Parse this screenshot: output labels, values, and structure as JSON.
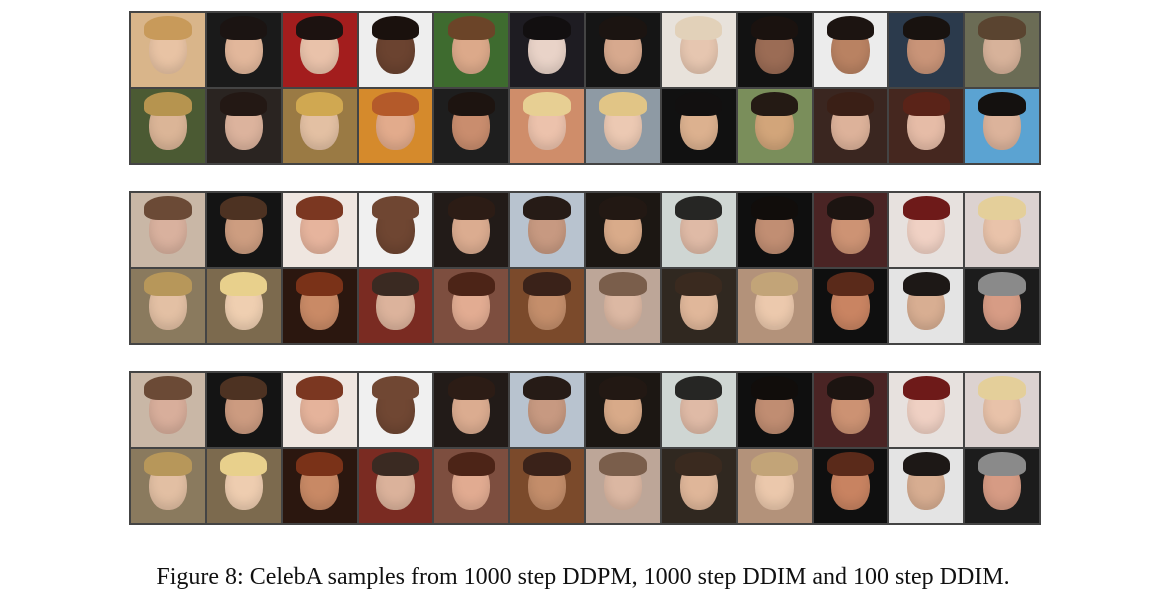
{
  "caption": "Figure 8: CelebA samples from 1000 step DDPM, 1000 step DDIM and 100 step DDIM.",
  "grids": [
    {
      "tiles": [
        {
          "bg": "#d9b58a",
          "skin": "#e8c3a4",
          "hair": "#c89a5a"
        },
        {
          "bg": "#1a1a1a",
          "skin": "#e2b79b",
          "hair": "#1b1412"
        },
        {
          "bg": "#a31d1d",
          "skin": "#e9c2aa",
          "hair": "#1c1210"
        },
        {
          "bg": "#eeeeee",
          "skin": "#6b4330",
          "hair": "#1a110d"
        },
        {
          "bg": "#3e6b2f",
          "skin": "#dca98a",
          "hair": "#6b4428"
        },
        {
          "bg": "#1e1c22",
          "skin": "#e9d3c8",
          "hair": "#120f10"
        },
        {
          "bg": "#151515",
          "skin": "#d7a98e",
          "hair": "#1b1411"
        },
        {
          "bg": "#e8e2db",
          "skin": "#e6c6b0",
          "hair": "#e2d1b9"
        },
        {
          "bg": "#121212",
          "skin": "#9b6c55",
          "hair": "#1a120f"
        },
        {
          "bg": "#ececec",
          "skin": "#b98262",
          "hair": "#1c1411"
        },
        {
          "bg": "#2b3a4c",
          "skin": "#c99478",
          "hair": "#18120f"
        },
        {
          "bg": "#6b6c55",
          "skin": "#d7b29a",
          "hair": "#5a4430"
        },
        {
          "bg": "#4b5a33",
          "skin": "#dbb597",
          "hair": "#b6944f"
        },
        {
          "bg": "#2a2421",
          "skin": "#dcb39d",
          "hair": "#231814"
        },
        {
          "bg": "#9a7a44",
          "skin": "#e3c0a3",
          "hair": "#d0a851"
        },
        {
          "bg": "#d58a2c",
          "skin": "#e2ab8c",
          "hair": "#b45a2a"
        },
        {
          "bg": "#1e1e1e",
          "skin": "#c98d6e",
          "hair": "#1d1410"
        },
        {
          "bg": "#cf8d6a",
          "skin": "#ecc2ac",
          "hair": "#e7cf93"
        },
        {
          "bg": "#8e9aa4",
          "skin": "#ecc9b3",
          "hair": "#e1c586"
        },
        {
          "bg": "#111111",
          "skin": "#dcb18f",
          "hair": "#121010"
        },
        {
          "bg": "#7a8e5b",
          "skin": "#d2a57a",
          "hair": "#241a14"
        },
        {
          "bg": "#3a2620",
          "skin": "#ddb29a",
          "hair": "#3a1f16"
        },
        {
          "bg": "#45271f",
          "skin": "#e6bca7",
          "hair": "#5a2318"
        },
        {
          "bg": "#5ba3d2",
          "skin": "#dcb39b",
          "hair": "#14110f"
        }
      ]
    },
    {
      "tiles": [
        {
          "bg": "#c9b7a6",
          "skin": "#d9b19e",
          "hair": "#6b4a36"
        },
        {
          "bg": "#141414",
          "skin": "#cd9d80",
          "hair": "#4d3222"
        },
        {
          "bg": "#efe6e0",
          "skin": "#e6b49d",
          "hair": "#7b3721"
        },
        {
          "bg": "#f0f0f0",
          "skin": "#6f4632",
          "hair": "#6f4632"
        },
        {
          "bg": "#221b18",
          "skin": "#dbac90",
          "hair": "#2c1c15"
        },
        {
          "bg": "#b8c3cf",
          "skin": "#c79981",
          "hair": "#261b16"
        },
        {
          "bg": "#1c1713",
          "skin": "#d9ab8a",
          "hair": "#221813"
        },
        {
          "bg": "#cfd6d3",
          "skin": "#dfbaa6",
          "hair": "#262624"
        },
        {
          "bg": "#0f0f0f",
          "skin": "#c18e73",
          "hair": "#110d0b"
        },
        {
          "bg": "#4a2424",
          "skin": "#cd9374",
          "hair": "#1c1411"
        },
        {
          "bg": "#e7e1de",
          "skin": "#f0d1c4",
          "hair": "#6e1a19"
        },
        {
          "bg": "#dcd2d0",
          "skin": "#e9c3aa",
          "hair": "#e4cf9a"
        },
        {
          "bg": "#8a7a5e",
          "skin": "#e3c0a4",
          "hair": "#b7975a"
        },
        {
          "bg": "#7c6a4e",
          "skin": "#efcfb1",
          "hair": "#e8d08c"
        },
        {
          "bg": "#2b170f",
          "skin": "#c98a66",
          "hair": "#7a3218"
        },
        {
          "bg": "#7a2b22",
          "skin": "#dcb39c",
          "hair": "#3a2a22"
        },
        {
          "bg": "#7d4e3f",
          "skin": "#e2ac92",
          "hair": "#4c2417"
        },
        {
          "bg": "#7b4a2b",
          "skin": "#c48e6b",
          "hair": "#3a2219"
        },
        {
          "bg": "#bda698",
          "skin": "#dcb8a3",
          "hair": "#7a5e4b"
        },
        {
          "bg": "#302820",
          "skin": "#e0b79a",
          "hair": "#3a2a1f"
        },
        {
          "bg": "#b3927a",
          "skin": "#ecc9ad",
          "hair": "#c2a478"
        },
        {
          "bg": "#0f0f0f",
          "skin": "#c98462",
          "hair": "#5a2a1a"
        },
        {
          "bg": "#e4e4e4",
          "skin": "#d8ae92",
          "hair": "#1d1816"
        },
        {
          "bg": "#1c1c1c",
          "skin": "#d79c85",
          "hair": "#8a8a8a"
        }
      ]
    },
    {
      "tiles": [
        {
          "bg": "#c9b7a6",
          "skin": "#d8ae9b",
          "hair": "#6b4a36"
        },
        {
          "bg": "#141414",
          "skin": "#cc9b80",
          "hair": "#4d3222"
        },
        {
          "bg": "#efe6e0",
          "skin": "#e5b39b",
          "hair": "#7b3721"
        },
        {
          "bg": "#f0f0f0",
          "skin": "#704733",
          "hair": "#704733"
        },
        {
          "bg": "#221b18",
          "skin": "#dbac90",
          "hair": "#2c1c15"
        },
        {
          "bg": "#b8c3cf",
          "skin": "#c79981",
          "hair": "#261b16"
        },
        {
          "bg": "#1c1713",
          "skin": "#d8aa89",
          "hair": "#221813"
        },
        {
          "bg": "#cfd6d3",
          "skin": "#dfbaa6",
          "hair": "#262624"
        },
        {
          "bg": "#0f0f0f",
          "skin": "#c08d72",
          "hair": "#110d0b"
        },
        {
          "bg": "#4a2424",
          "skin": "#cc9273",
          "hair": "#1c1411"
        },
        {
          "bg": "#e7e1de",
          "skin": "#efd0c3",
          "hair": "#6e1a19"
        },
        {
          "bg": "#dcd2d0",
          "skin": "#e8c2a9",
          "hair": "#e4cf9a"
        },
        {
          "bg": "#8a7a5e",
          "skin": "#e2bfa3",
          "hair": "#b7975a"
        },
        {
          "bg": "#7c6a4e",
          "skin": "#eecdb0",
          "hair": "#e8d08c"
        },
        {
          "bg": "#2b170f",
          "skin": "#c88965",
          "hair": "#7a3218"
        },
        {
          "bg": "#7a2b22",
          "skin": "#dbb29b",
          "hair": "#3a2a22"
        },
        {
          "bg": "#7d4e3f",
          "skin": "#e1ab91",
          "hair": "#4c2417"
        },
        {
          "bg": "#7b4a2b",
          "skin": "#c38d6a",
          "hair": "#3a2219"
        },
        {
          "bg": "#bda698",
          "skin": "#dbb7a2",
          "hair": "#7a5e4b"
        },
        {
          "bg": "#302820",
          "skin": "#dfb699",
          "hair": "#3a2a1f"
        },
        {
          "bg": "#b3927a",
          "skin": "#ebc8ac",
          "hair": "#c2a478"
        },
        {
          "bg": "#0f0f0f",
          "skin": "#c88361",
          "hair": "#5a2a1a"
        },
        {
          "bg": "#e4e4e4",
          "skin": "#d7ad91",
          "hair": "#1d1816"
        },
        {
          "bg": "#1c1c1c",
          "skin": "#d69b84",
          "hair": "#8a8a8a"
        }
      ]
    }
  ]
}
